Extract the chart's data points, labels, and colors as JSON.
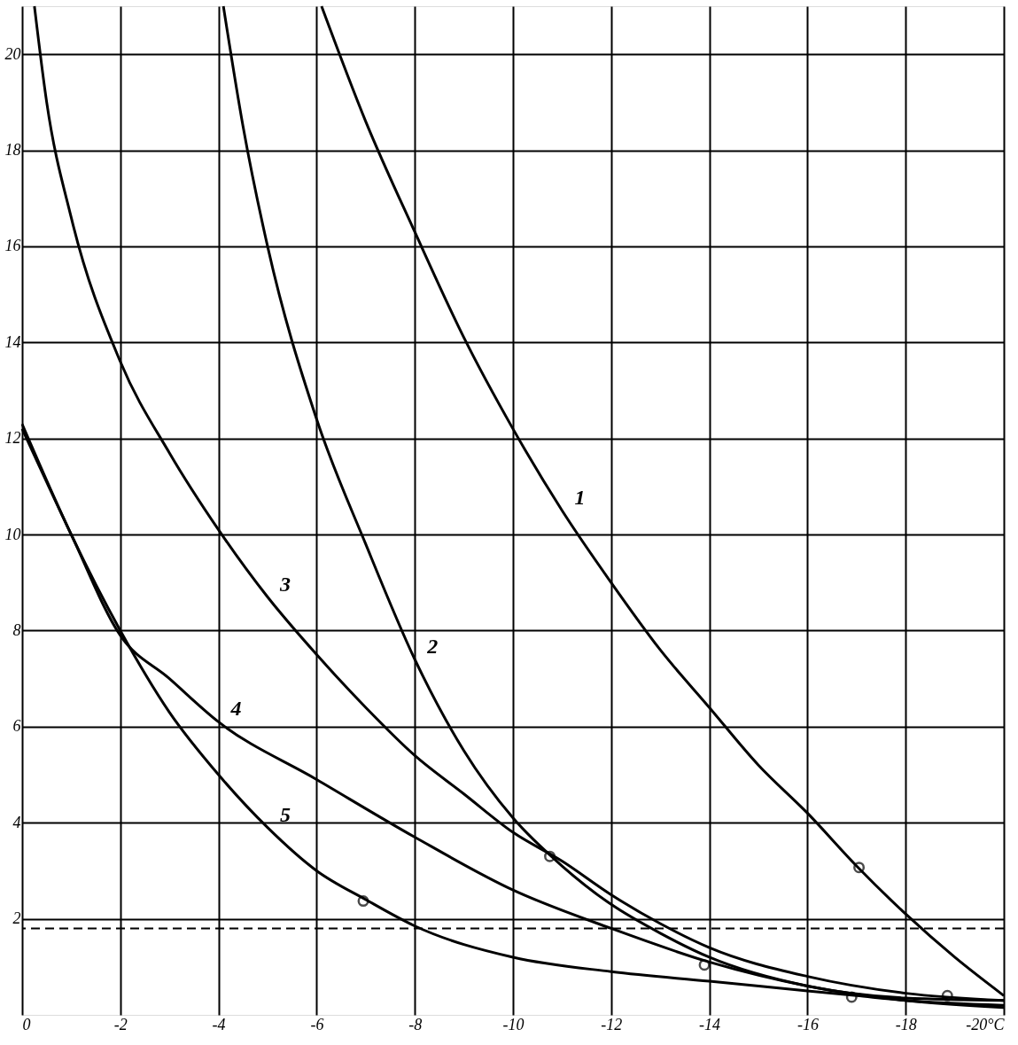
{
  "chart_data": {
    "type": "line",
    "xlim": [
      0,
      -20
    ],
    "ylim": [
      0,
      21
    ],
    "xticks": [
      0,
      -2,
      -4,
      -6,
      -8,
      -10,
      -12,
      -14,
      -16,
      -18,
      {
        "value": -20,
        "label": "-20°C"
      }
    ],
    "yticks": [
      2,
      4,
      6,
      8,
      10,
      12,
      14,
      16,
      18,
      20
    ],
    "grid": true,
    "line_style": "solid",
    "marker": "none",
    "series": [
      {
        "name": "1",
        "color": "#000000",
        "x": [
          -6.1,
          -7,
          -8,
          -9,
          -10,
          -11,
          -12,
          -13,
          -14,
          -15,
          -16,
          -17,
          -18,
          -19,
          -20
        ],
        "values": [
          21,
          18.6,
          16.3,
          14.1,
          12.2,
          10.5,
          9.0,
          7.6,
          6.4,
          5.2,
          4.2,
          3.1,
          2.1,
          1.2,
          0.4
        ]
      },
      {
        "name": "2",
        "color": "#000000",
        "x": [
          -4.1,
          -4.5,
          -5,
          -6,
          -7,
          -8,
          -9,
          -10,
          -11,
          -12,
          -13,
          -14,
          -16,
          -18,
          -20
        ],
        "values": [
          21,
          18.5,
          16,
          12.4,
          9.8,
          7.4,
          5.5,
          4.1,
          3.1,
          2.3,
          1.7,
          1.2,
          0.6,
          0.35,
          0.3
        ]
      },
      {
        "name": "3",
        "color": "#000000",
        "x": [
          -0.25,
          -0.5,
          -1,
          -2,
          -3,
          -4,
          -5,
          -6,
          -7,
          -8,
          -9,
          -10,
          -11,
          -12,
          -13,
          -14,
          -16,
          -18,
          -20
        ],
        "values": [
          21,
          19,
          16.6,
          13.6,
          11.7,
          10.1,
          8.7,
          7.5,
          6.4,
          5.4,
          4.6,
          3.8,
          3.2,
          2.5,
          1.9,
          1.4,
          0.8,
          0.45,
          0.3
        ]
      },
      {
        "name": "4",
        "color": "#000000",
        "x": [
          0,
          -1,
          -2,
          -3,
          -4,
          -6,
          -8,
          -10,
          -12,
          -14,
          -16,
          -18,
          -20
        ],
        "values": [
          12.2,
          10.0,
          7.9,
          7.0,
          6.1,
          4.9,
          3.7,
          2.6,
          1.8,
          1.1,
          0.6,
          0.3,
          0.15
        ]
      },
      {
        "name": "5",
        "color": "#000000",
        "x": [
          0,
          -1,
          -2,
          -3,
          -4,
          -5,
          -6,
          -7,
          -8,
          -10,
          -12,
          -14,
          -16,
          -17,
          -18,
          -20
        ],
        "values": [
          12.3,
          10.0,
          8.0,
          6.3,
          5.0,
          3.9,
          3.0,
          2.4,
          1.85,
          1.2,
          0.9,
          0.7,
          0.5,
          0.4,
          0.3,
          0.2
        ]
      },
      {
        "type": "scatter",
        "marker": "circle",
        "color": "#000000",
        "x": [
          -6.95,
          -10.75,
          -13.9,
          -16.9,
          -17.05,
          -18.85
        ],
        "values": [
          2.37,
          3.3,
          1.04,
          0.37,
          3.07,
          0.4
        ]
      }
    ],
    "ref_lines": [
      {
        "axis": "y",
        "value": 1.8,
        "line_style": "dashed",
        "color": "#000000"
      }
    ]
  }
}
